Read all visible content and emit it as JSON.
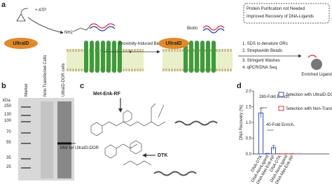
{
  "panel_a": {
    "label": "a",
    "atp": "+ ATP",
    "enzyme_left": "UltraID",
    "amine": "NH2",
    "arrow_label": "Proximity-Induced Biotinylation",
    "biotin": "Biotin",
    "enzyme_right": "UltraID",
    "steps": [
      "1. SDS to denature ORs",
      "2. Streptavidin Beads",
      "3. Stringent Washes",
      "4. qPCR/DNA Seq."
    ],
    "result": "Enriched Ligand",
    "benefits": [
      "Protein Purification not Needed",
      "Improved Recovery of DNA-Ligands"
    ]
  },
  "panel_b": {
    "label": "b",
    "unit": "kDa",
    "ladder": [
      "250",
      "130",
      "100",
      "70",
      "55",
      "35",
      "25"
    ],
    "lanes": [
      "Marker",
      "Non-Transfected Cells",
      "UltraID-DOR cells"
    ],
    "annotation": "MW for UltraID-DOR"
  },
  "panel_c": {
    "label": "c",
    "ligands": [
      "Met-Enk-RF",
      "DTK"
    ]
  },
  "panel_d": {
    "label": "d"
  },
  "chart_data": {
    "type": "bar",
    "y_label": "DNA Recovery (%)",
    "categories": [
      "DNA-DTK",
      "DNA-NonLigand",
      "DNA-Met-Enk-RF",
      "DNA-DTK",
      "DNA-NonLigand",
      "DNA-Met-Enk-RF"
    ],
    "series": [
      {
        "name": "Selection with UltraID-DOR cells",
        "color": "#3a4fb5",
        "values": [
          1.3,
          0.01,
          0.2,
          null,
          null,
          null
        ],
        "errors": [
          0.15,
          0.01,
          0.07,
          null,
          null,
          null
        ]
      },
      {
        "name": "Selection with Non-Transfected Cells",
        "color": "#d9383a",
        "values": [
          null,
          null,
          null,
          0.005,
          0.005,
          0.005
        ],
        "errors": [
          null,
          null,
          null,
          0.003,
          0.003,
          0.003
        ]
      }
    ],
    "ylim": [
      0,
      2
    ],
    "yticks": [
      {
        "value": 0,
        "label": "0.0"
      },
      {
        "value": 0.5,
        "label": "0.5"
      },
      {
        "value": 1,
        "label": "1.0"
      },
      {
        "value": 1.5,
        "label": "1.5"
      },
      {
        "value": 2,
        "label": "2.0"
      }
    ],
    "annotations": [
      "280-Fold Enrich.",
      "40-Fold Enrich."
    ]
  }
}
